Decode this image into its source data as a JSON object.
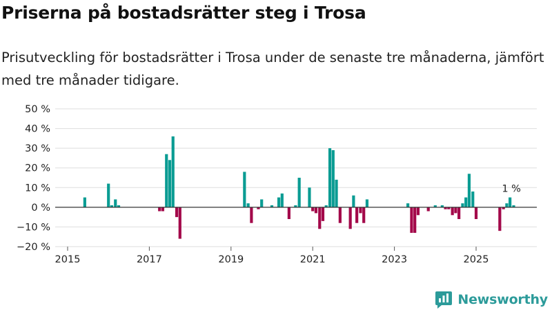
{
  "title": "Priserna på bostadsrätter steg i Trosa",
  "subtitle": "Prisutveckling för bostadsrätter i Trosa under de senaste tre månaderna, jämfört med tre månader tidigare.",
  "brand": "Newsworthy",
  "colors": {
    "positive": "#0a9c93",
    "negative": "#a3094a",
    "zero_line": "#333333",
    "grid": "#dddddd",
    "brand": "#2c9b9a"
  },
  "chart_data": {
    "type": "bar",
    "title": "Priserna på bostadsrätter steg i Trosa",
    "xlabel": "",
    "ylabel": "",
    "ylim": [
      -20,
      50
    ],
    "xlim": [
      2015,
      2026.4
    ],
    "y_ticks": [
      -20,
      -10,
      0,
      10,
      20,
      30,
      40,
      50
    ],
    "y_tick_labels": [
      "−20 %",
      "−10 %",
      "0 %",
      "10 %",
      "20 %",
      "30 %",
      "40 %",
      "50 %"
    ],
    "x_ticks": [
      2015,
      2017,
      2019,
      2021,
      2023,
      2025
    ],
    "x_tick_labels": [
      "2015",
      "2017",
      "2019",
      "2021",
      "2023",
      "2025"
    ],
    "annotation": {
      "x": 2025.83,
      "y": 5,
      "text": "1 %"
    },
    "x": [
      2015.42,
      2016.0,
      2016.08,
      2016.17,
      2016.25,
      2017.25,
      2017.33,
      2017.42,
      2017.5,
      2017.58,
      2017.67,
      2017.75,
      2019.33,
      2019.42,
      2019.5,
      2019.67,
      2019.75,
      2020.0,
      2020.17,
      2020.25,
      2020.42,
      2020.58,
      2020.67,
      2020.92,
      2021.0,
      2021.08,
      2021.17,
      2021.25,
      2021.33,
      2021.42,
      2021.5,
      2021.58,
      2021.67,
      2021.92,
      2022.0,
      2022.08,
      2022.17,
      2022.25,
      2022.33,
      2023.33,
      2023.42,
      2023.5,
      2023.58,
      2023.83,
      2024.0,
      2024.17,
      2024.25,
      2024.33,
      2024.42,
      2024.5,
      2024.58,
      2024.67,
      2024.75,
      2024.83,
      2024.92,
      2025.0,
      2025.58,
      2025.67,
      2025.75,
      2025.83,
      2025.92
    ],
    "values": [
      5,
      12,
      1,
      4,
      1,
      -2,
      -2,
      27,
      24,
      36,
      -5,
      -16,
      18,
      2,
      -8,
      -1,
      4,
      1,
      5,
      7,
      -6,
      1,
      15,
      10,
      -2,
      -3,
      -11,
      -7,
      1,
      30,
      29,
      14,
      -8,
      -11,
      6,
      -8,
      -3,
      -8,
      4,
      2,
      -13,
      -13,
      -4,
      -2,
      1,
      1,
      -1,
      -1,
      -4,
      -3,
      -6,
      2,
      5,
      17,
      8,
      -6,
      -12,
      -1,
      2,
      5,
      1
    ]
  }
}
